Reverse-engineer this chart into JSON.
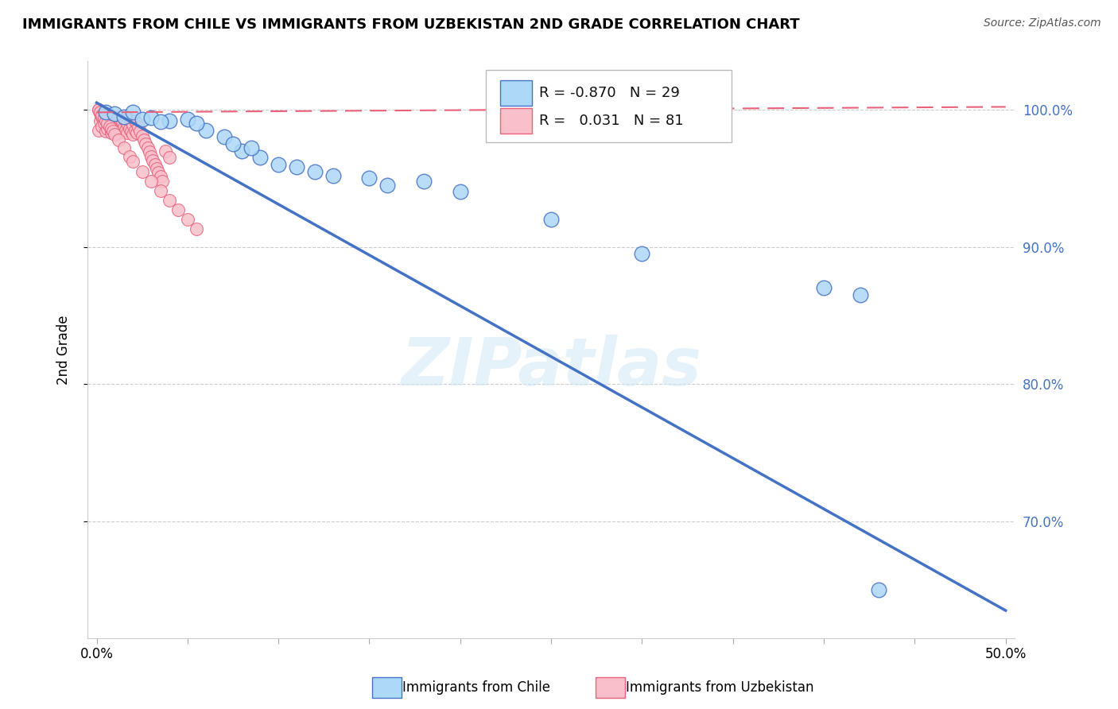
{
  "title": "IMMIGRANTS FROM CHILE VS IMMIGRANTS FROM UZBEKISTAN 2ND GRADE CORRELATION CHART",
  "source": "Source: ZipAtlas.com",
  "ylabel": "2nd Grade",
  "xlabel_chile": "Immigrants from Chile",
  "xlabel_uzbekistan": "Immigrants from Uzbekistan",
  "watermark": "ZIPatlas",
  "xlim": [
    -0.005,
    0.505
  ],
  "ylim": [
    0.615,
    1.035
  ],
  "yticks": [
    0.7,
    0.8,
    0.9,
    1.0
  ],
  "ytick_labels": [
    "70.0%",
    "80.0%",
    "90.0%",
    "100.0%"
  ],
  "grid_yticks": [
    0.7,
    0.8,
    0.9,
    1.0
  ],
  "xticks": [
    0.0,
    0.05,
    0.1,
    0.15,
    0.2,
    0.25,
    0.3,
    0.35,
    0.4,
    0.45,
    0.5
  ],
  "xtick_labels": [
    "0.0%",
    "",
    "",
    "",
    "",
    "",
    "",
    "",
    "",
    "",
    "50.0%"
  ],
  "chile_color": "#ADD8F7",
  "chile_edge_color": "#4472C4",
  "uzbekistan_color": "#F9C0CB",
  "uzbekistan_edge_color": "#E8607A",
  "chile_R": -0.87,
  "chile_N": 29,
  "uzbekistan_R": 0.031,
  "uzbekistan_N": 81,
  "chile_line_x0": 0.0,
  "chile_line_y0": 1.005,
  "chile_line_x1": 0.5,
  "chile_line_y1": 0.635,
  "uzbekistan_line_x0": 0.0,
  "uzbekistan_line_y0": 0.998,
  "uzbekistan_line_x1": 0.5,
  "uzbekistan_line_y1": 1.002,
  "chile_scatter_x": [
    0.005,
    0.01,
    0.015,
    0.02,
    0.025,
    0.03,
    0.04,
    0.05,
    0.06,
    0.07,
    0.08,
    0.1,
    0.12,
    0.15,
    0.18,
    0.2,
    0.16,
    0.075,
    0.09,
    0.055,
    0.11,
    0.13,
    0.035,
    0.085,
    0.25,
    0.3,
    0.4,
    0.42,
    0.43
  ],
  "chile_scatter_y": [
    0.998,
    0.997,
    0.995,
    0.998,
    0.993,
    0.994,
    0.992,
    0.993,
    0.985,
    0.98,
    0.97,
    0.96,
    0.955,
    0.95,
    0.948,
    0.94,
    0.945,
    0.975,
    0.965,
    0.99,
    0.958,
    0.952,
    0.991,
    0.972,
    0.92,
    0.895,
    0.87,
    0.865,
    0.65
  ],
  "uzbekistan_scatter_x": [
    0.001,
    0.001,
    0.002,
    0.002,
    0.003,
    0.003,
    0.004,
    0.004,
    0.005,
    0.005,
    0.006,
    0.006,
    0.007,
    0.007,
    0.008,
    0.008,
    0.009,
    0.009,
    0.01,
    0.01,
    0.011,
    0.011,
    0.012,
    0.012,
    0.013,
    0.013,
    0.014,
    0.014,
    0.015,
    0.015,
    0.016,
    0.016,
    0.017,
    0.017,
    0.018,
    0.018,
    0.019,
    0.019,
    0.02,
    0.02,
    0.021,
    0.021,
    0.022,
    0.022,
    0.023,
    0.024,
    0.025,
    0.026,
    0.027,
    0.028,
    0.029,
    0.03,
    0.031,
    0.032,
    0.033,
    0.034,
    0.035,
    0.036,
    0.038,
    0.04,
    0.001,
    0.002,
    0.003,
    0.004,
    0.005,
    0.006,
    0.007,
    0.008,
    0.009,
    0.01,
    0.012,
    0.015,
    0.018,
    0.02,
    0.025,
    0.03,
    0.035,
    0.04,
    0.045,
    0.05,
    0.055
  ],
  "uzbekistan_scatter_y": [
    0.985,
    1.0,
    0.992,
    0.997,
    0.988,
    0.995,
    0.99,
    0.998,
    0.984,
    0.994,
    0.986,
    0.993,
    0.989,
    0.996,
    0.983,
    0.991,
    0.987,
    0.994,
    0.985,
    0.992,
    0.988,
    0.995,
    0.983,
    0.99,
    0.986,
    0.993,
    0.984,
    0.991,
    0.987,
    0.994,
    0.985,
    0.992,
    0.983,
    0.99,
    0.986,
    0.993,
    0.984,
    0.991,
    0.982,
    0.989,
    0.985,
    0.992,
    0.983,
    0.99,
    0.987,
    0.984,
    0.981,
    0.978,
    0.975,
    0.972,
    0.969,
    0.966,
    0.963,
    0.96,
    0.957,
    0.954,
    0.951,
    0.948,
    0.97,
    0.965,
    1.0,
    0.998,
    0.996,
    0.994,
    0.992,
    0.99,
    0.988,
    0.986,
    0.984,
    0.982,
    0.978,
    0.972,
    0.966,
    0.962,
    0.955,
    0.948,
    0.941,
    0.934,
    0.927,
    0.92,
    0.913
  ]
}
